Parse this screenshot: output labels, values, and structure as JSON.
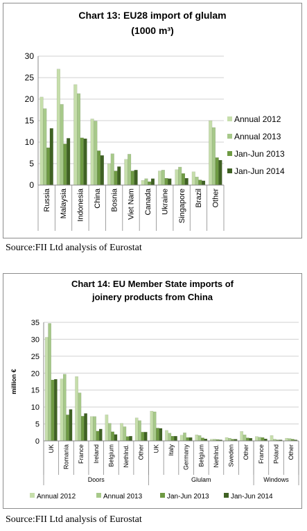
{
  "colors": {
    "annual_2012": "#c6deab",
    "annual_2013": "#a7c98a",
    "jan_jun_2013": "#6e9a43",
    "jan_jun_2014": "#3f6123",
    "gridline": "#d0d0d0",
    "axis": "#888888"
  },
  "chart_data": [
    {
      "type": "bar",
      "title": "Chart 13: EU28 import of glulam",
      "title_line2": "(1000 m³)",
      "categories": [
        "Russia",
        "Malaysia",
        "Indonesia",
        "China",
        "Bosnia",
        "Viet Nam",
        "Canada",
        "Ukraine",
        "Singapore",
        "Brazil",
        "Other"
      ],
      "series": [
        {
          "name": "Annual 2012",
          "values": [
            20.5,
            27.0,
            23.4,
            15.4,
            5.0,
            6.0,
            1.1,
            3.3,
            3.6,
            3.1,
            15.0
          ]
        },
        {
          "name": "Annual 2013",
          "values": [
            17.8,
            18.8,
            21.3,
            14.9,
            7.3,
            7.2,
            1.5,
            3.5,
            4.2,
            1.9,
            13.4
          ]
        },
        {
          "name": "Jan-Jun 2013",
          "values": [
            8.7,
            9.6,
            11.0,
            8.0,
            3.3,
            3.3,
            0.8,
            1.6,
            2.7,
            1.2,
            6.4
          ]
        },
        {
          "name": "Jan-Jun 2014",
          "values": [
            13.2,
            10.9,
            10.8,
            6.9,
            4.3,
            3.5,
            1.5,
            1.5,
            1.6,
            1.0,
            5.8
          ]
        }
      ],
      "yticks": [
        "0",
        "5",
        "10",
        "15",
        "20",
        "25",
        "30"
      ],
      "ylim": [
        0,
        30
      ],
      "grid": true,
      "legend_position": "right"
    },
    {
      "type": "bar",
      "title": "Chart 14: EU Member State imports of",
      "title_line2": "joinery products from China",
      "ylabel": "million €",
      "categories": [
        "UK",
        "Romania",
        "France",
        "Ireland",
        "Belgium",
        "Nethlnd.",
        "Other",
        "UK",
        "Italy",
        "Germany",
        "Belgium",
        "Nethlnd.",
        "Sweden",
        "Other",
        "France",
        "Poland",
        "Other"
      ],
      "groups": [
        {
          "label": "Doors",
          "count": 7
        },
        {
          "label": "Glulam",
          "count": 7
        },
        {
          "label": "Windows",
          "count": 3
        }
      ],
      "series": [
        {
          "name": "Annual 2012",
          "values": [
            30.6,
            18.3,
            19.0,
            7.2,
            7.7,
            5.2,
            6.8,
            8.8,
            3.1,
            1.7,
            1.8,
            0.5,
            1.0,
            2.8,
            1.3,
            1.6,
            0.8
          ]
        },
        {
          "name": "Annual 2013",
          "values": [
            34.7,
            19.7,
            14.2,
            7.2,
            5.2,
            4.2,
            6.0,
            8.6,
            2.3,
            2.4,
            1.6,
            0.5,
            0.8,
            1.8,
            1.1,
            0.5,
            0.7
          ]
        },
        {
          "name": "Jan-Jun 2013",
          "values": [
            18.0,
            7.7,
            7.3,
            2.9,
            2.7,
            1.3,
            2.6,
            3.8,
            1.4,
            1.0,
            0.9,
            0.4,
            0.5,
            0.9,
            1.0,
            0.3,
            0.5
          ]
        },
        {
          "name": "Jan-Jun 2014",
          "values": [
            18.2,
            9.3,
            8.1,
            3.5,
            1.9,
            1.4,
            2.6,
            3.7,
            1.4,
            1.0,
            0.6,
            0.3,
            0.5,
            0.8,
            0.6,
            0.3,
            0.3
          ]
        }
      ],
      "yticks": [
        "0",
        "5",
        "10",
        "15",
        "20",
        "25",
        "30",
        "35"
      ],
      "ylim": [
        0,
        35
      ],
      "grid": true,
      "legend_position": "bottom"
    }
  ],
  "sources": [
    "Source:FII Ltd analysis of Eurostat",
    "Source:FII Ltd analysis of Eurostat"
  ]
}
